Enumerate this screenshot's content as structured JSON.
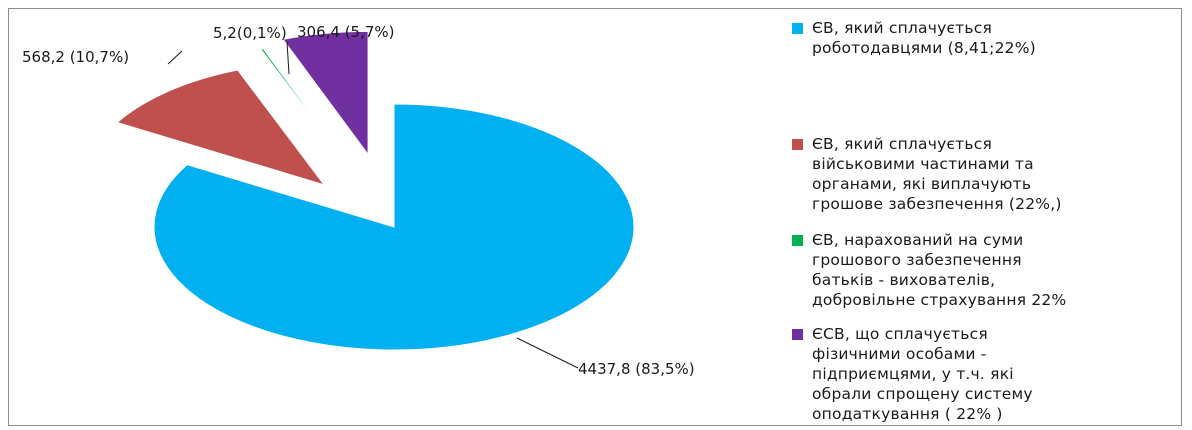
{
  "chart_data": {
    "type": "pie",
    "exploded": true,
    "legend_position": "right",
    "slices": [
      {
        "label": "ЄВ, який сплачується\nроботодавцями  (8,41;22%)",
        "value": 4437.8,
        "percent": 83.5,
        "data_label": "4437,8 (83,5%)",
        "color": "#00b0f0"
      },
      {
        "label": "ЄВ, який сплачується\nвійськовими частинами та\nорганами, які виплачують\nгрошове забезпечення  (22%,)",
        "value": 568.2,
        "percent": 10.7,
        "data_label": "568,2 (10,7%)",
        "color": "#c0504d"
      },
      {
        "label": "ЄВ, нарахований на суми\nгрошового забезпечення\nбатьків - вихователів,\nдобровільне страхування 22%",
        "value": 5.2,
        "percent": 0.1,
        "data_label": "5,2(0,1%)",
        "color": "#00b050"
      },
      {
        "label": "ЄСВ, що сплачується\nфізичними особами -\nпідприємцями, у т.ч. які\nобрали спрощену систему\nоподаткування ( 22% )",
        "value": 306.4,
        "percent": 5.7,
        "data_label": "306,4 (5,7%)",
        "color": "#7030a0"
      }
    ]
  }
}
